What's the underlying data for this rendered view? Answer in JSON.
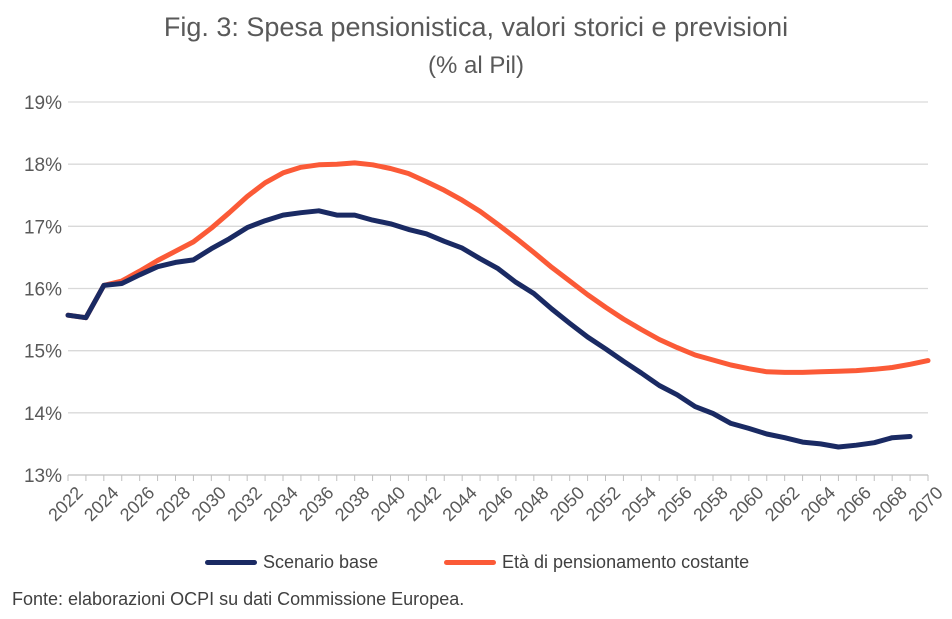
{
  "colors": {
    "series_base": "#1a2a63",
    "series_const": "#fb5a37",
    "grid": "#d9d9d9",
    "text": "#595959"
  },
  "source_note": "Fonte: elaborazioni OCPI su dati Commissione Europea.",
  "chart_data": {
    "type": "line",
    "title": "Fig. 3: Spesa pensionistica, valori storici e previsioni",
    "subtitle": "(% al Pil)",
    "xlabel": "",
    "ylabel": "",
    "ylim": [
      13,
      19
    ],
    "yticks": [
      "13%",
      "14%",
      "15%",
      "16%",
      "17%",
      "18%",
      "19%"
    ],
    "xtick_labels": [
      "2022",
      "2024",
      "2026",
      "2028",
      "2030",
      "2032",
      "2034",
      "2036",
      "2038",
      "2040",
      "2042",
      "2044",
      "2046",
      "2048",
      "2050",
      "2052",
      "2054",
      "2056",
      "2058",
      "2060",
      "2062",
      "2064",
      "2066",
      "2068",
      "2070"
    ],
    "legend_position": "bottom",
    "grid": true,
    "series": [
      {
        "name": "Scenario base",
        "x": [
          2022,
          2023,
          2024,
          2025,
          2026,
          2027,
          2028,
          2029,
          2030,
          2031,
          2032,
          2033,
          2034,
          2035,
          2036,
          2037,
          2038,
          2039,
          2040,
          2041,
          2042,
          2043,
          2044,
          2045,
          2046,
          2047,
          2048,
          2049,
          2050,
          2051,
          2052,
          2053,
          2054,
          2055,
          2056,
          2057,
          2058,
          2059,
          2060,
          2061,
          2062,
          2063,
          2064,
          2065,
          2066,
          2067,
          2068,
          2069
        ],
        "values": [
          15.57,
          15.53,
          16.05,
          16.08,
          16.22,
          16.35,
          16.42,
          16.46,
          16.64,
          16.8,
          16.98,
          17.09,
          17.18,
          17.22,
          17.25,
          17.18,
          17.18,
          17.1,
          17.04,
          16.95,
          16.88,
          16.76,
          16.65,
          16.48,
          16.32,
          16.1,
          15.92,
          15.67,
          15.44,
          15.22,
          15.03,
          14.83,
          14.64,
          14.44,
          14.29,
          14.1,
          13.99,
          13.83,
          13.75,
          13.66,
          13.6,
          13.53,
          13.5,
          13.45,
          13.48,
          13.52,
          13.6,
          13.62
        ]
      },
      {
        "name": "Età di pensionamento costante",
        "x": [
          2022,
          2023,
          2024,
          2025,
          2026,
          2027,
          2028,
          2029,
          2030,
          2031,
          2032,
          2033,
          2034,
          2035,
          2036,
          2037,
          2038,
          2039,
          2040,
          2041,
          2042,
          2043,
          2044,
          2045,
          2046,
          2047,
          2048,
          2049,
          2050,
          2051,
          2052,
          2053,
          2054,
          2055,
          2056,
          2057,
          2058,
          2059,
          2060,
          2061,
          2062,
          2063,
          2064,
          2065,
          2066,
          2067,
          2068,
          2069,
          2070
        ],
        "values": [
          15.57,
          15.53,
          16.05,
          16.12,
          16.28,
          16.45,
          16.6,
          16.75,
          16.97,
          17.22,
          17.48,
          17.7,
          17.86,
          17.95,
          17.99,
          18.0,
          18.02,
          17.99,
          17.93,
          17.85,
          17.72,
          17.58,
          17.42,
          17.24,
          17.03,
          16.81,
          16.58,
          16.34,
          16.12,
          15.9,
          15.7,
          15.51,
          15.34,
          15.18,
          15.05,
          14.93,
          14.85,
          14.77,
          14.71,
          14.66,
          14.65,
          14.65,
          14.66,
          14.67,
          14.68,
          14.7,
          14.73,
          14.78,
          14.84
        ]
      }
    ]
  }
}
